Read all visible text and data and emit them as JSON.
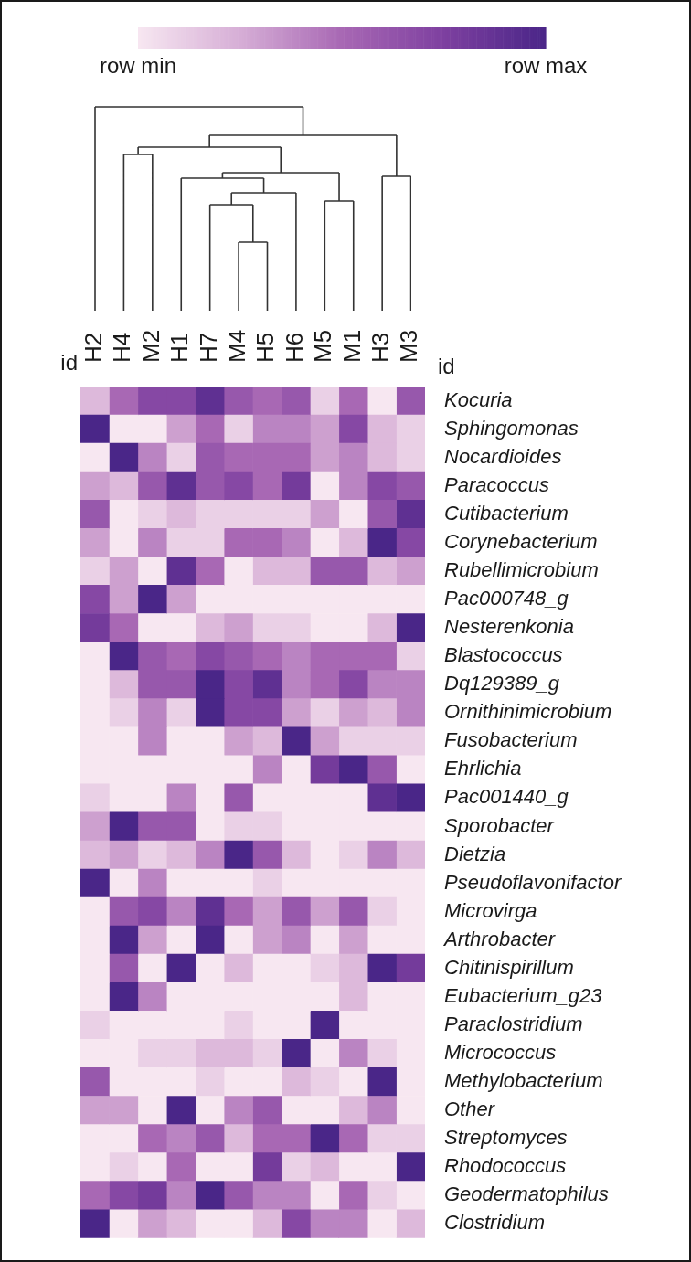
{
  "chart_data": {
    "type": "heatmap",
    "categories": [
      "H2",
      "H4",
      "M2",
      "H1",
      "H7",
      "M4",
      "H5",
      "H6",
      "M5",
      "M1",
      "H3",
      "M3"
    ],
    "y_categories": [
      "Kocuria",
      "Sphingomonas",
      "Nocardioides",
      "Paracoccus",
      "Cutibacterium",
      "Corynebacterium",
      "Rubellimicrobium",
      "Pac000748_g",
      "Nesterenkonia",
      "Blastococcus",
      "Dq129389_g",
      "Ornithinimicrobium",
      "Fusobacterium",
      "Ehrlichia",
      "Pac001440_g",
      "Sporobacter",
      "Dietzia",
      "Pseudoflavonifactor",
      "Microvirga",
      "Arthrobacter",
      "Chitinispirillum",
      "Eubacterium_g23",
      "Paraclostridium",
      "Micrococcus",
      "Methylobacterium",
      "Other",
      "Streptomyces",
      "Rhodococcus",
      "Geodermatophilus",
      "Clostridium"
    ],
    "cells": [
      [
        0.2,
        0.5,
        0.7,
        0.7,
        0.9,
        0.6,
        0.5,
        0.6,
        0.1,
        0.5,
        0,
        0.6
      ],
      [
        1,
        0,
        0,
        0.3,
        0.5,
        0.1,
        0.4,
        0.4,
        0.3,
        0.7,
        0.2,
        0.1
      ],
      [
        0,
        1,
        0.4,
        0.1,
        0.6,
        0.5,
        0.5,
        0.5,
        0.3,
        0.4,
        0.2,
        0.1
      ],
      [
        0.3,
        0.2,
        0.6,
        0.9,
        0.6,
        0.7,
        0.5,
        0.8,
        0,
        0.4,
        0.7,
        0.6
      ],
      [
        0.6,
        0,
        0.1,
        0.2,
        0.1,
        0.1,
        0.1,
        0.1,
        0.3,
        0,
        0.6,
        0.9
      ],
      [
        0.3,
        0,
        0.4,
        0.1,
        0.1,
        0.5,
        0.5,
        0.4,
        0,
        0.2,
        1,
        0.7
      ],
      [
        0.1,
        0.3,
        0,
        0.9,
        0.5,
        0,
        0.2,
        0.2,
        0.6,
        0.6,
        0.2,
        0.3
      ],
      [
        0.7,
        0.3,
        1,
        0.3,
        0,
        0,
        0,
        0,
        0,
        0,
        0,
        0
      ],
      [
        0.8,
        0.5,
        0,
        0,
        0.2,
        0.3,
        0.1,
        0.1,
        0,
        0,
        0.2,
        1
      ],
      [
        0,
        1,
        0.6,
        0.5,
        0.7,
        0.6,
        0.5,
        0.4,
        0.5,
        0.5,
        0.5,
        0.1
      ],
      [
        0,
        0.2,
        0.6,
        0.6,
        1,
        0.7,
        0.9,
        0.4,
        0.5,
        0.7,
        0.4,
        0.4
      ],
      [
        0,
        0.1,
        0.4,
        0.1,
        1,
        0.7,
        0.7,
        0.3,
        0.1,
        0.3,
        0.2,
        0.4
      ],
      [
        0,
        0,
        0.4,
        0,
        0,
        0.3,
        0.2,
        1,
        0.3,
        0.1,
        0.1,
        0.1
      ],
      [
        0,
        0,
        0,
        0,
        0,
        0,
        0.4,
        0,
        0.8,
        1,
        0.6,
        0
      ],
      [
        0.1,
        0,
        0,
        0.4,
        0,
        0.6,
        0,
        0,
        0,
        0,
        0.9,
        1
      ],
      [
        0.3,
        1,
        0.6,
        0.6,
        0,
        0.1,
        0.1,
        0,
        0,
        0,
        0,
        0
      ],
      [
        0.2,
        0.3,
        0.1,
        0.2,
        0.4,
        1,
        0.6,
        0.2,
        0,
        0.1,
        0.4,
        0.2
      ],
      [
        1,
        0,
        0.4,
        0,
        0,
        0,
        0.1,
        0,
        0,
        0,
        0,
        0
      ],
      [
        0,
        0.6,
        0.7,
        0.4,
        0.9,
        0.5,
        0.3,
        0.6,
        0.3,
        0.6,
        0.1,
        0
      ],
      [
        0,
        1,
        0.3,
        0,
        1,
        0,
        0.3,
        0.4,
        0,
        0.3,
        0,
        0
      ],
      [
        0,
        0.6,
        0,
        1,
        0,
        0.2,
        0,
        0,
        0.1,
        0.2,
        1,
        0.8
      ],
      [
        0,
        1,
        0.4,
        0,
        0,
        0,
        0,
        0,
        0,
        0.2,
        0,
        0
      ],
      [
        0.1,
        0,
        0,
        0,
        0,
        0.1,
        0,
        0,
        1,
        0,
        0,
        0
      ],
      [
        0,
        0,
        0.1,
        0.1,
        0.2,
        0.2,
        0.1,
        1,
        0,
        0.4,
        0.1,
        0
      ],
      [
        0.6,
        0,
        0,
        0,
        0.1,
        0,
        0,
        0.2,
        0.1,
        0,
        1,
        0
      ],
      [
        0.3,
        0.3,
        0,
        1,
        0,
        0.4,
        0.6,
        0,
        0,
        0.2,
        0.4,
        0
      ],
      [
        0,
        0,
        0.5,
        0.4,
        0.6,
        0.2,
        0.5,
        0.5,
        1,
        0.5,
        0.1,
        0.1
      ],
      [
        0,
        0.1,
        0,
        0.5,
        0,
        0,
        0.8,
        0.1,
        0.2,
        0,
        0,
        1
      ],
      [
        0.5,
        0.7,
        0.8,
        0.4,
        1,
        0.6,
        0.4,
        0.4,
        0,
        0.5,
        0.1,
        0
      ],
      [
        1,
        0,
        0.3,
        0.2,
        0,
        0,
        0.2,
        0.7,
        0.4,
        0.4,
        0,
        0.2
      ]
    ],
    "clim": [
      0,
      1
    ],
    "cticks": [
      {
        "value": 0,
        "label": "row min"
      },
      {
        "value": 1,
        "label": "row max"
      }
    ],
    "annotations": [
      "id",
      "id"
    ]
  }
}
